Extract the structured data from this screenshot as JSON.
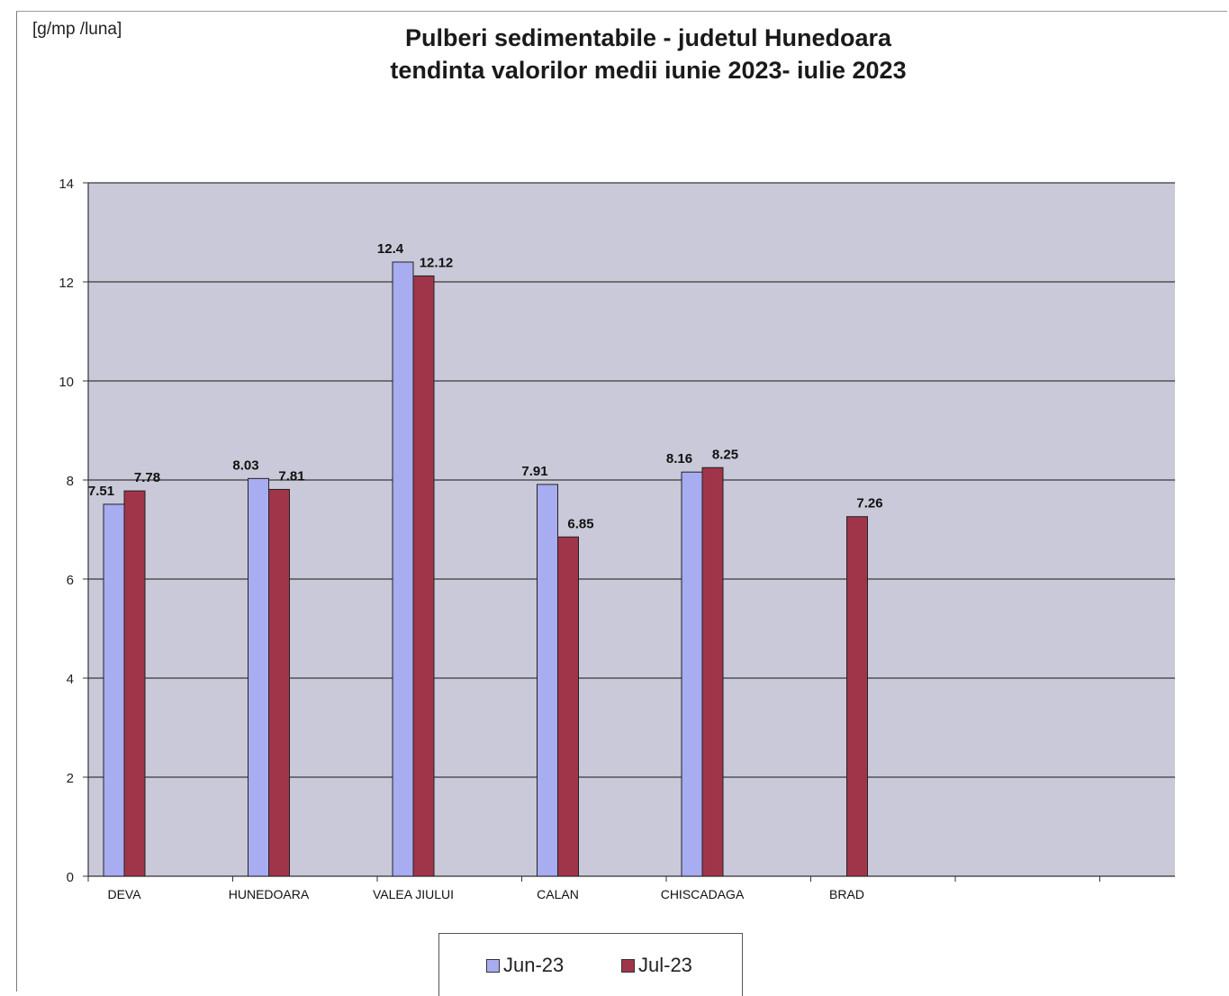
{
  "chart_data": {
    "type": "bar",
    "title": "Pulberi sedimentabile - judetul Hunedoara",
    "subtitle": "tendinta valorilor medii iunie  2023- iulie 2023",
    "ylabel": "[g/mp /luna]",
    "xlabel": "",
    "ylim": [
      0,
      14
    ],
    "yticks": [
      0,
      2,
      4,
      6,
      8,
      10,
      12,
      14
    ],
    "categories": [
      "DEVA",
      "HUNEDOARA",
      "VALEA JIULUI",
      "CALAN",
      "CHISCADAGA",
      "BRAD"
    ],
    "series": [
      {
        "name": "Jun-23",
        "color": "#a8acf0",
        "values": [
          7.51,
          8.03,
          12.4,
          7.91,
          8.16,
          null
        ],
        "labels": [
          "7.51",
          "8.03",
          "12.4",
          "7.91",
          "8.16",
          ""
        ]
      },
      {
        "name": "Jul-23",
        "color": "#a0354a",
        "values": [
          7.78,
          7.81,
          12.12,
          6.85,
          8.25,
          7.26
        ],
        "labels": [
          "7.78",
          "7.81",
          "12.12",
          "6.85",
          "8.25",
          "7.26"
        ]
      }
    ],
    "grid": true,
    "legend_position": "bottom"
  }
}
